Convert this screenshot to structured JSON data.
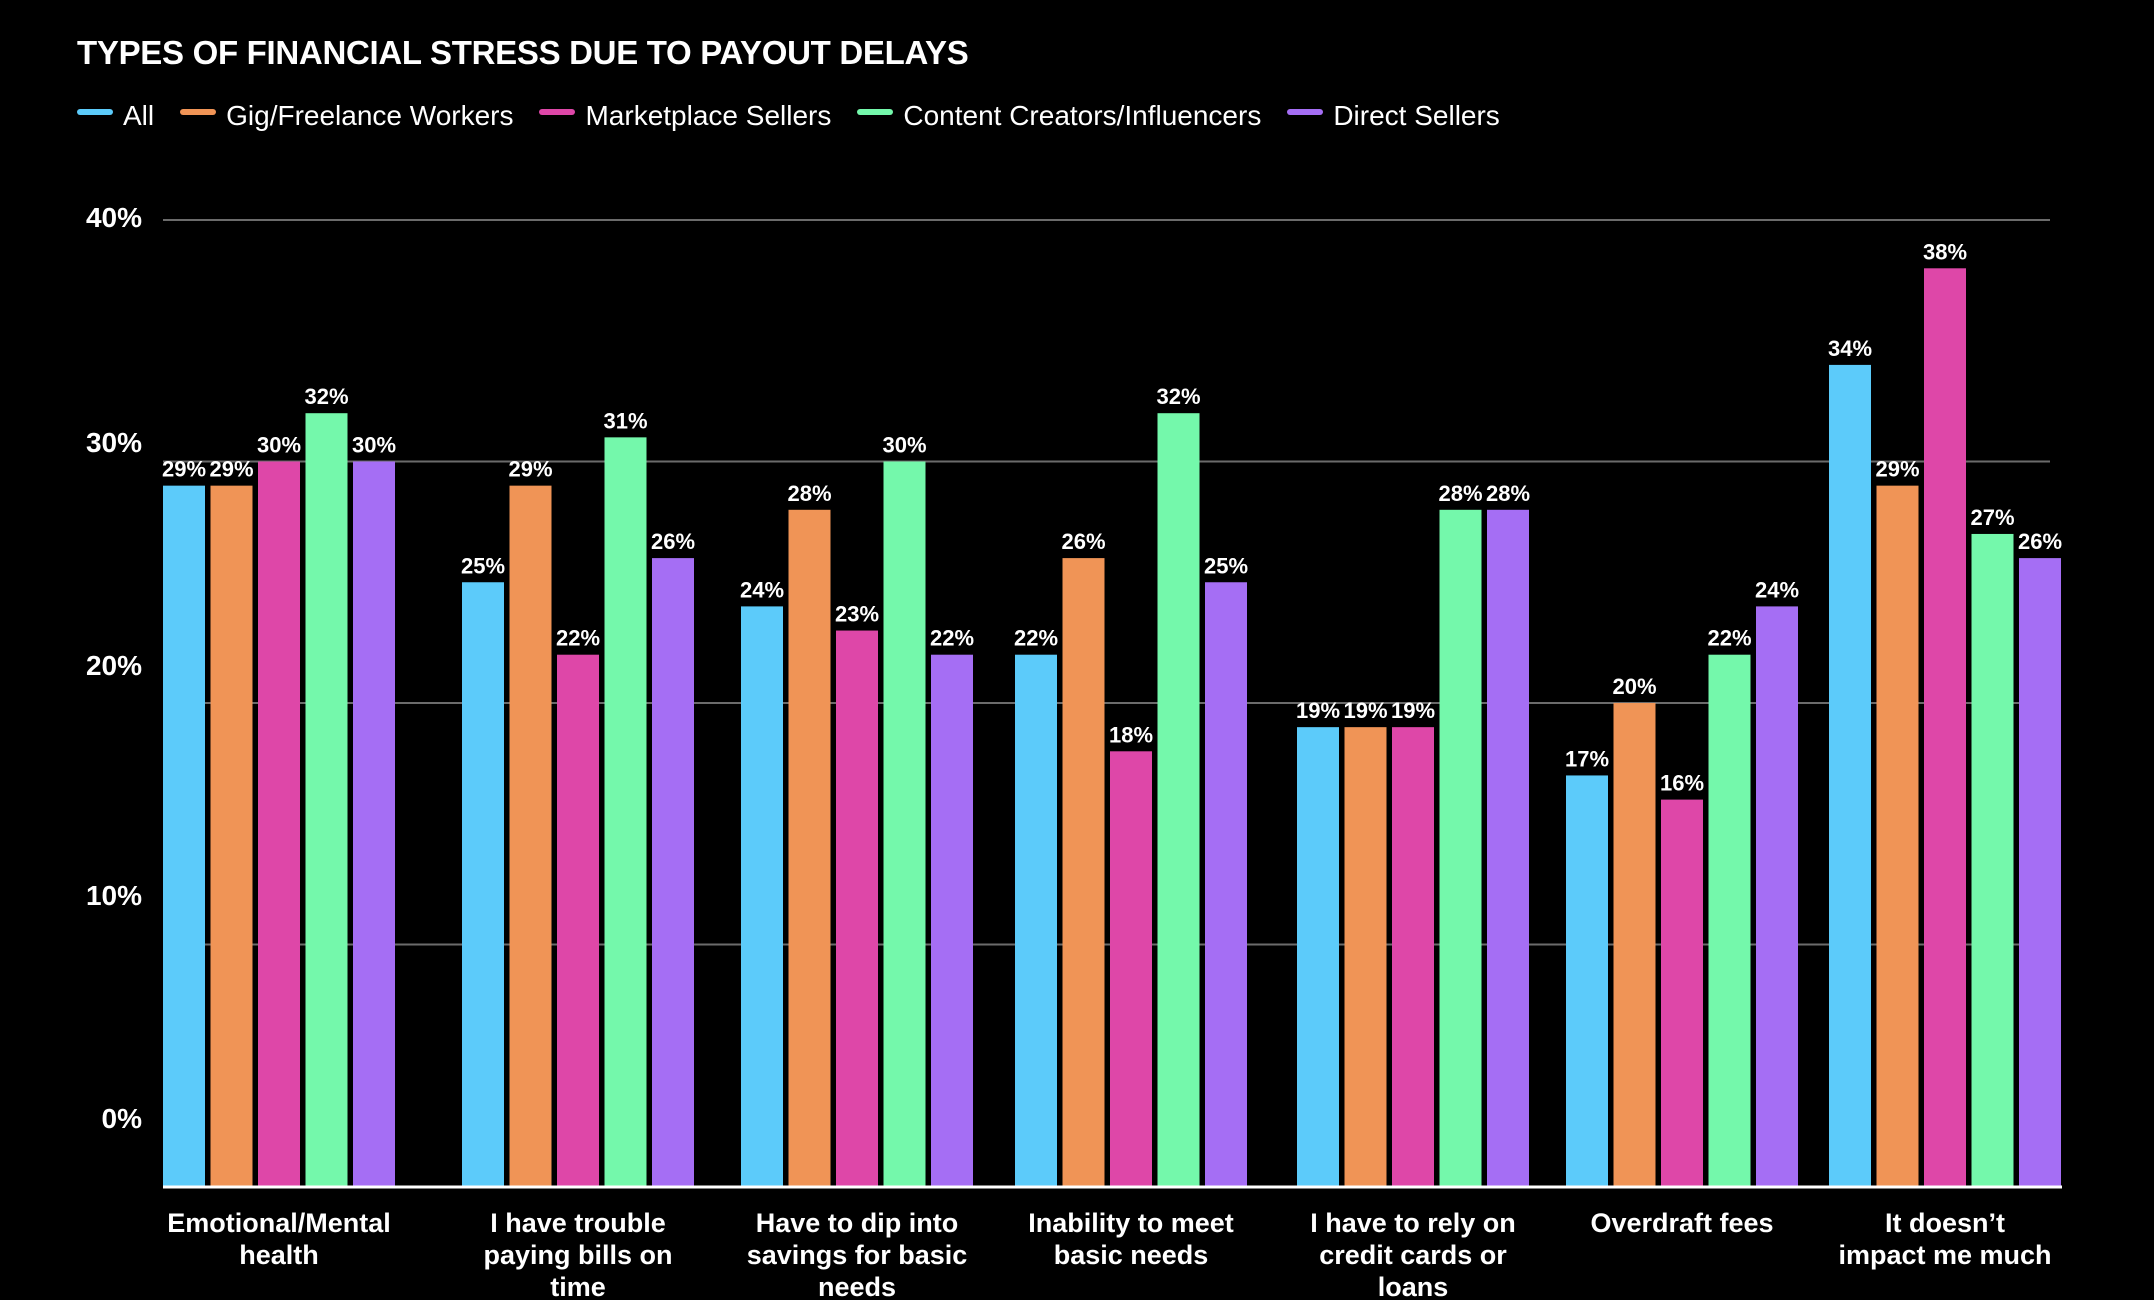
{
  "chart_data": {
    "type": "bar",
    "title": "TYPES OF FINANCIAL STRESS DUE TO PAYOUT DELAYS",
    "categories": [
      [
        "Emotional/Mental",
        "health"
      ],
      [
        "I have trouble",
        "paying bills on",
        "time"
      ],
      [
        "Have to dip into",
        "savings for basic",
        "needs"
      ],
      [
        "Inability to meet",
        "basic needs"
      ],
      [
        "I have to rely on",
        "credit cards or",
        "loans"
      ],
      [
        "Overdraft fees"
      ],
      [
        "It doesn’t",
        "impact me much"
      ]
    ],
    "series": [
      {
        "name": "All",
        "color": "#5ccbfa",
        "values": [
          29,
          25,
          24,
          22,
          19,
          17,
          34
        ]
      },
      {
        "name": "Gig/Freelance Workers",
        "color": "#f09456",
        "values": [
          29,
          29,
          28,
          26,
          19,
          20,
          29
        ]
      },
      {
        "name": "Marketplace Sellers",
        "color": "#de47a8",
        "values": [
          30,
          22,
          23,
          18,
          19,
          16,
          38
        ]
      },
      {
        "name": "Content Creators/Influencers",
        "color": "#74f8ab",
        "values": [
          32,
          31,
          30,
          32,
          28,
          22,
          27
        ]
      },
      {
        "name": "Direct Sellers",
        "color": "#a56ef4",
        "values": [
          30,
          26,
          22,
          25,
          28,
          24,
          26
        ]
      }
    ],
    "ylim": [
      0,
      40
    ],
    "yticks": [
      "0%",
      "10%",
      "20%",
      "30%",
      "40%"
    ],
    "value_suffix": "%",
    "grid": true,
    "legend": "top-left"
  }
}
